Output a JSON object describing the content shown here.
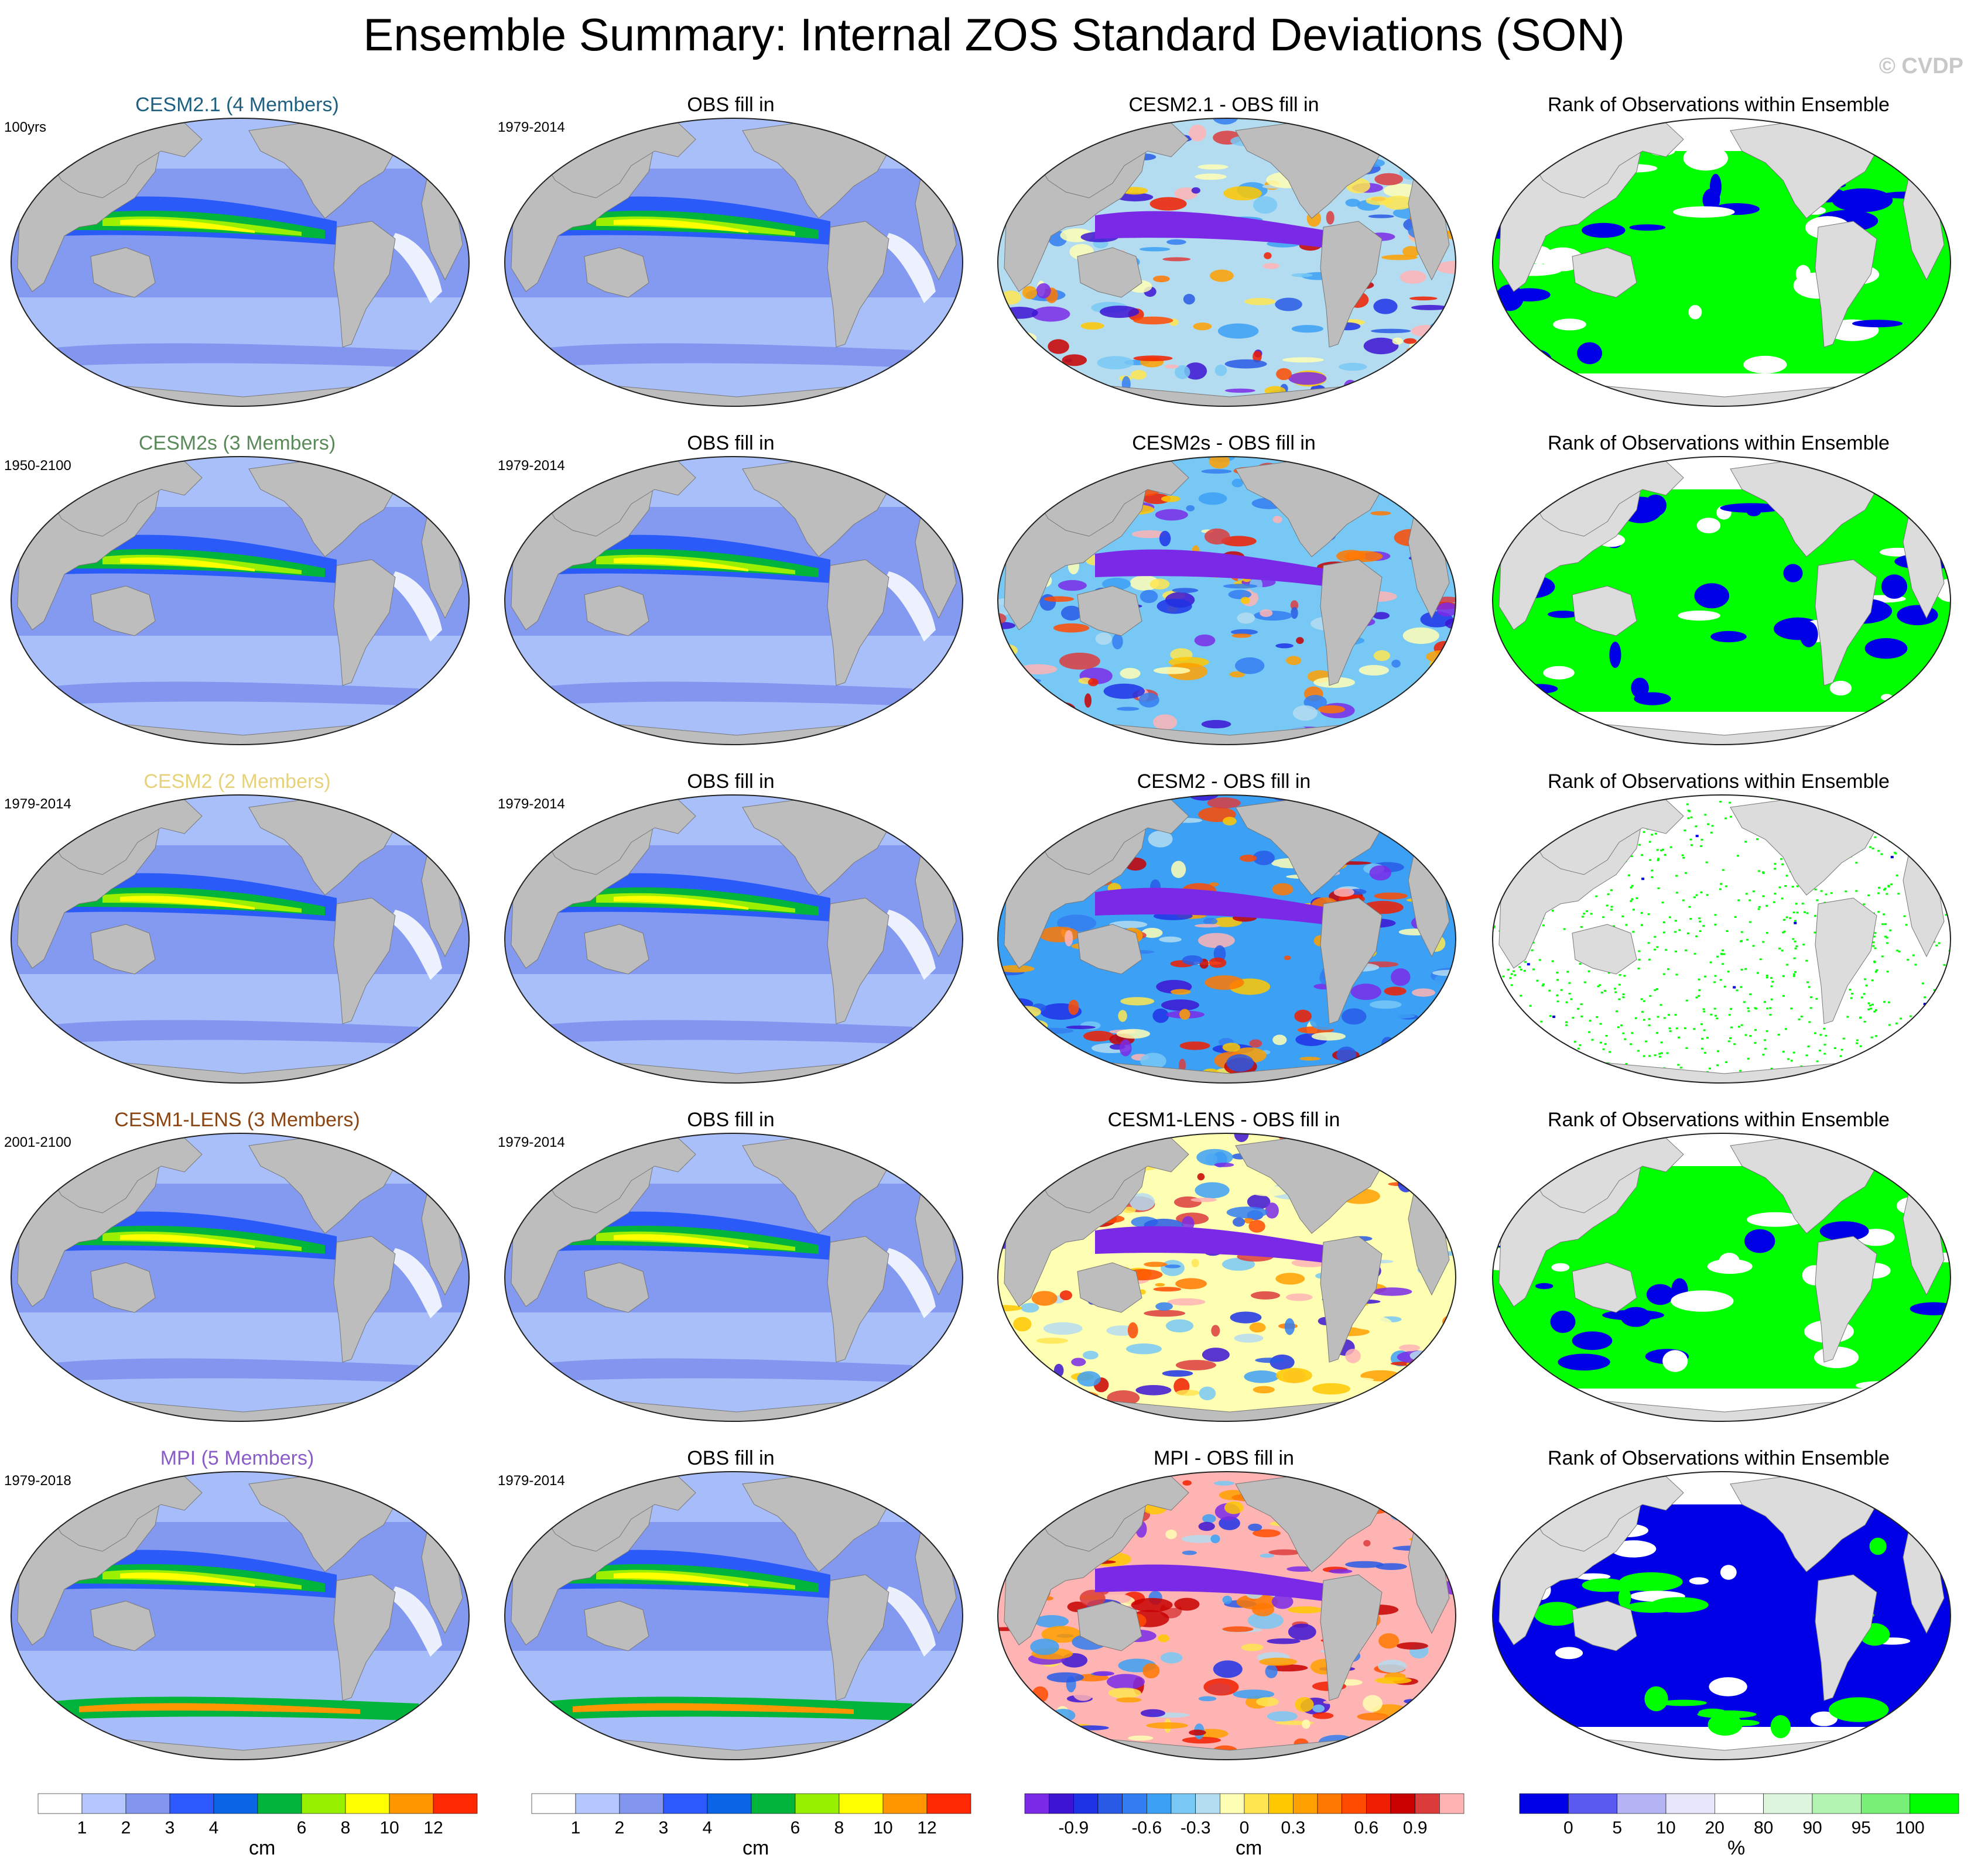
{
  "header": {
    "title": "Ensemble Summary: Internal ZOS Standard Deviations (SON)",
    "watermark": "© CVDP"
  },
  "colors": {
    "land": "#bdbdbd",
    "rank_land": "#dcdcdc",
    "rank_green": "#00ff00",
    "rank_blue": "#0000e6",
    "model_titles": [
      "#1f5f80",
      "#5a8a5a",
      "#e6d27a",
      "#8b4513",
      "#8a5cc8"
    ]
  },
  "rows": [
    {
      "model": "CESM2.1 (4 Members)",
      "model_period": "100yrs",
      "obs_title": "OBS fill in",
      "obs_period": "1979-2014",
      "diff_title": "CESM2.1 - OBS fill in",
      "rank_title": "Rank of Observations within Ensemble"
    },
    {
      "model": "CESM2s (3 Members)",
      "model_period": "1950-2100",
      "obs_title": "OBS fill in",
      "obs_period": "1979-2014",
      "diff_title": "CESM2s - OBS fill in",
      "rank_title": "Rank of Observations within Ensemble"
    },
    {
      "model": "CESM2 (2 Members)",
      "model_period": "1979-2014",
      "obs_title": "OBS fill in",
      "obs_period": "1979-2014",
      "diff_title": "CESM2 - OBS fill in",
      "rank_title": "Rank of Observations within Ensemble"
    },
    {
      "model": "CESM1-LENS (3 Members)",
      "model_period": "2001-2100",
      "obs_title": "OBS fill in",
      "obs_period": "1979-2014",
      "diff_title": "CESM1-LENS - OBS fill in",
      "rank_title": "Rank of Observations within Ensemble"
    },
    {
      "model": "MPI (5 Members)",
      "model_period": "1979-2018",
      "obs_title": "OBS fill in",
      "obs_period": "1979-2014",
      "diff_title": "MPI - OBS fill in",
      "rank_title": "Rank of Observations within Ensemble"
    }
  ],
  "colorbars": [
    {
      "unit": "cm",
      "labels": [
        "1",
        "2",
        "3",
        "4",
        "6",
        "8",
        "10",
        "12"
      ],
      "colors": [
        "#ffffff",
        "#b4c8ff",
        "#8296f0",
        "#2d5aff",
        "#0a64e6",
        "#00b43c",
        "#96f000",
        "#ffff00",
        "#ff9600",
        "#ff2800"
      ]
    },
    {
      "unit": "cm",
      "labels": [
        "1",
        "2",
        "3",
        "4",
        "6",
        "8",
        "10",
        "12"
      ],
      "colors": [
        "#ffffff",
        "#b4c8ff",
        "#8296f0",
        "#2d5aff",
        "#0a64e6",
        "#00b43c",
        "#96f000",
        "#ffff00",
        "#ff9600",
        "#ff2800"
      ]
    },
    {
      "unit": "cm",
      "labels": [
        "-0.9",
        "-0.6",
        "-0.3",
        "0",
        "0.3",
        "0.6",
        "0.9"
      ],
      "colors": [
        "#7a2ae6",
        "#3c14d2",
        "#1e32e6",
        "#285ae6",
        "#327ef0",
        "#3ca0f5",
        "#78c8f5",
        "#b4dcf0",
        "#ffffb4",
        "#ffe650",
        "#ffc800",
        "#ffa000",
        "#ff7800",
        "#ff4b00",
        "#f01e00",
        "#c80000",
        "#dc3c3c",
        "#ffb4b4"
      ]
    },
    {
      "unit": "%",
      "labels": [
        "0",
        "5",
        "10",
        "20",
        "80",
        "90",
        "95",
        "100"
      ],
      "colors": [
        "#0000e6",
        "#5a5af0",
        "#b4b4f5",
        "#e6e6fa",
        "#ffffff",
        "#dcf5dc",
        "#b4f5b4",
        "#78f078",
        "#00ff00"
      ]
    }
  ]
}
